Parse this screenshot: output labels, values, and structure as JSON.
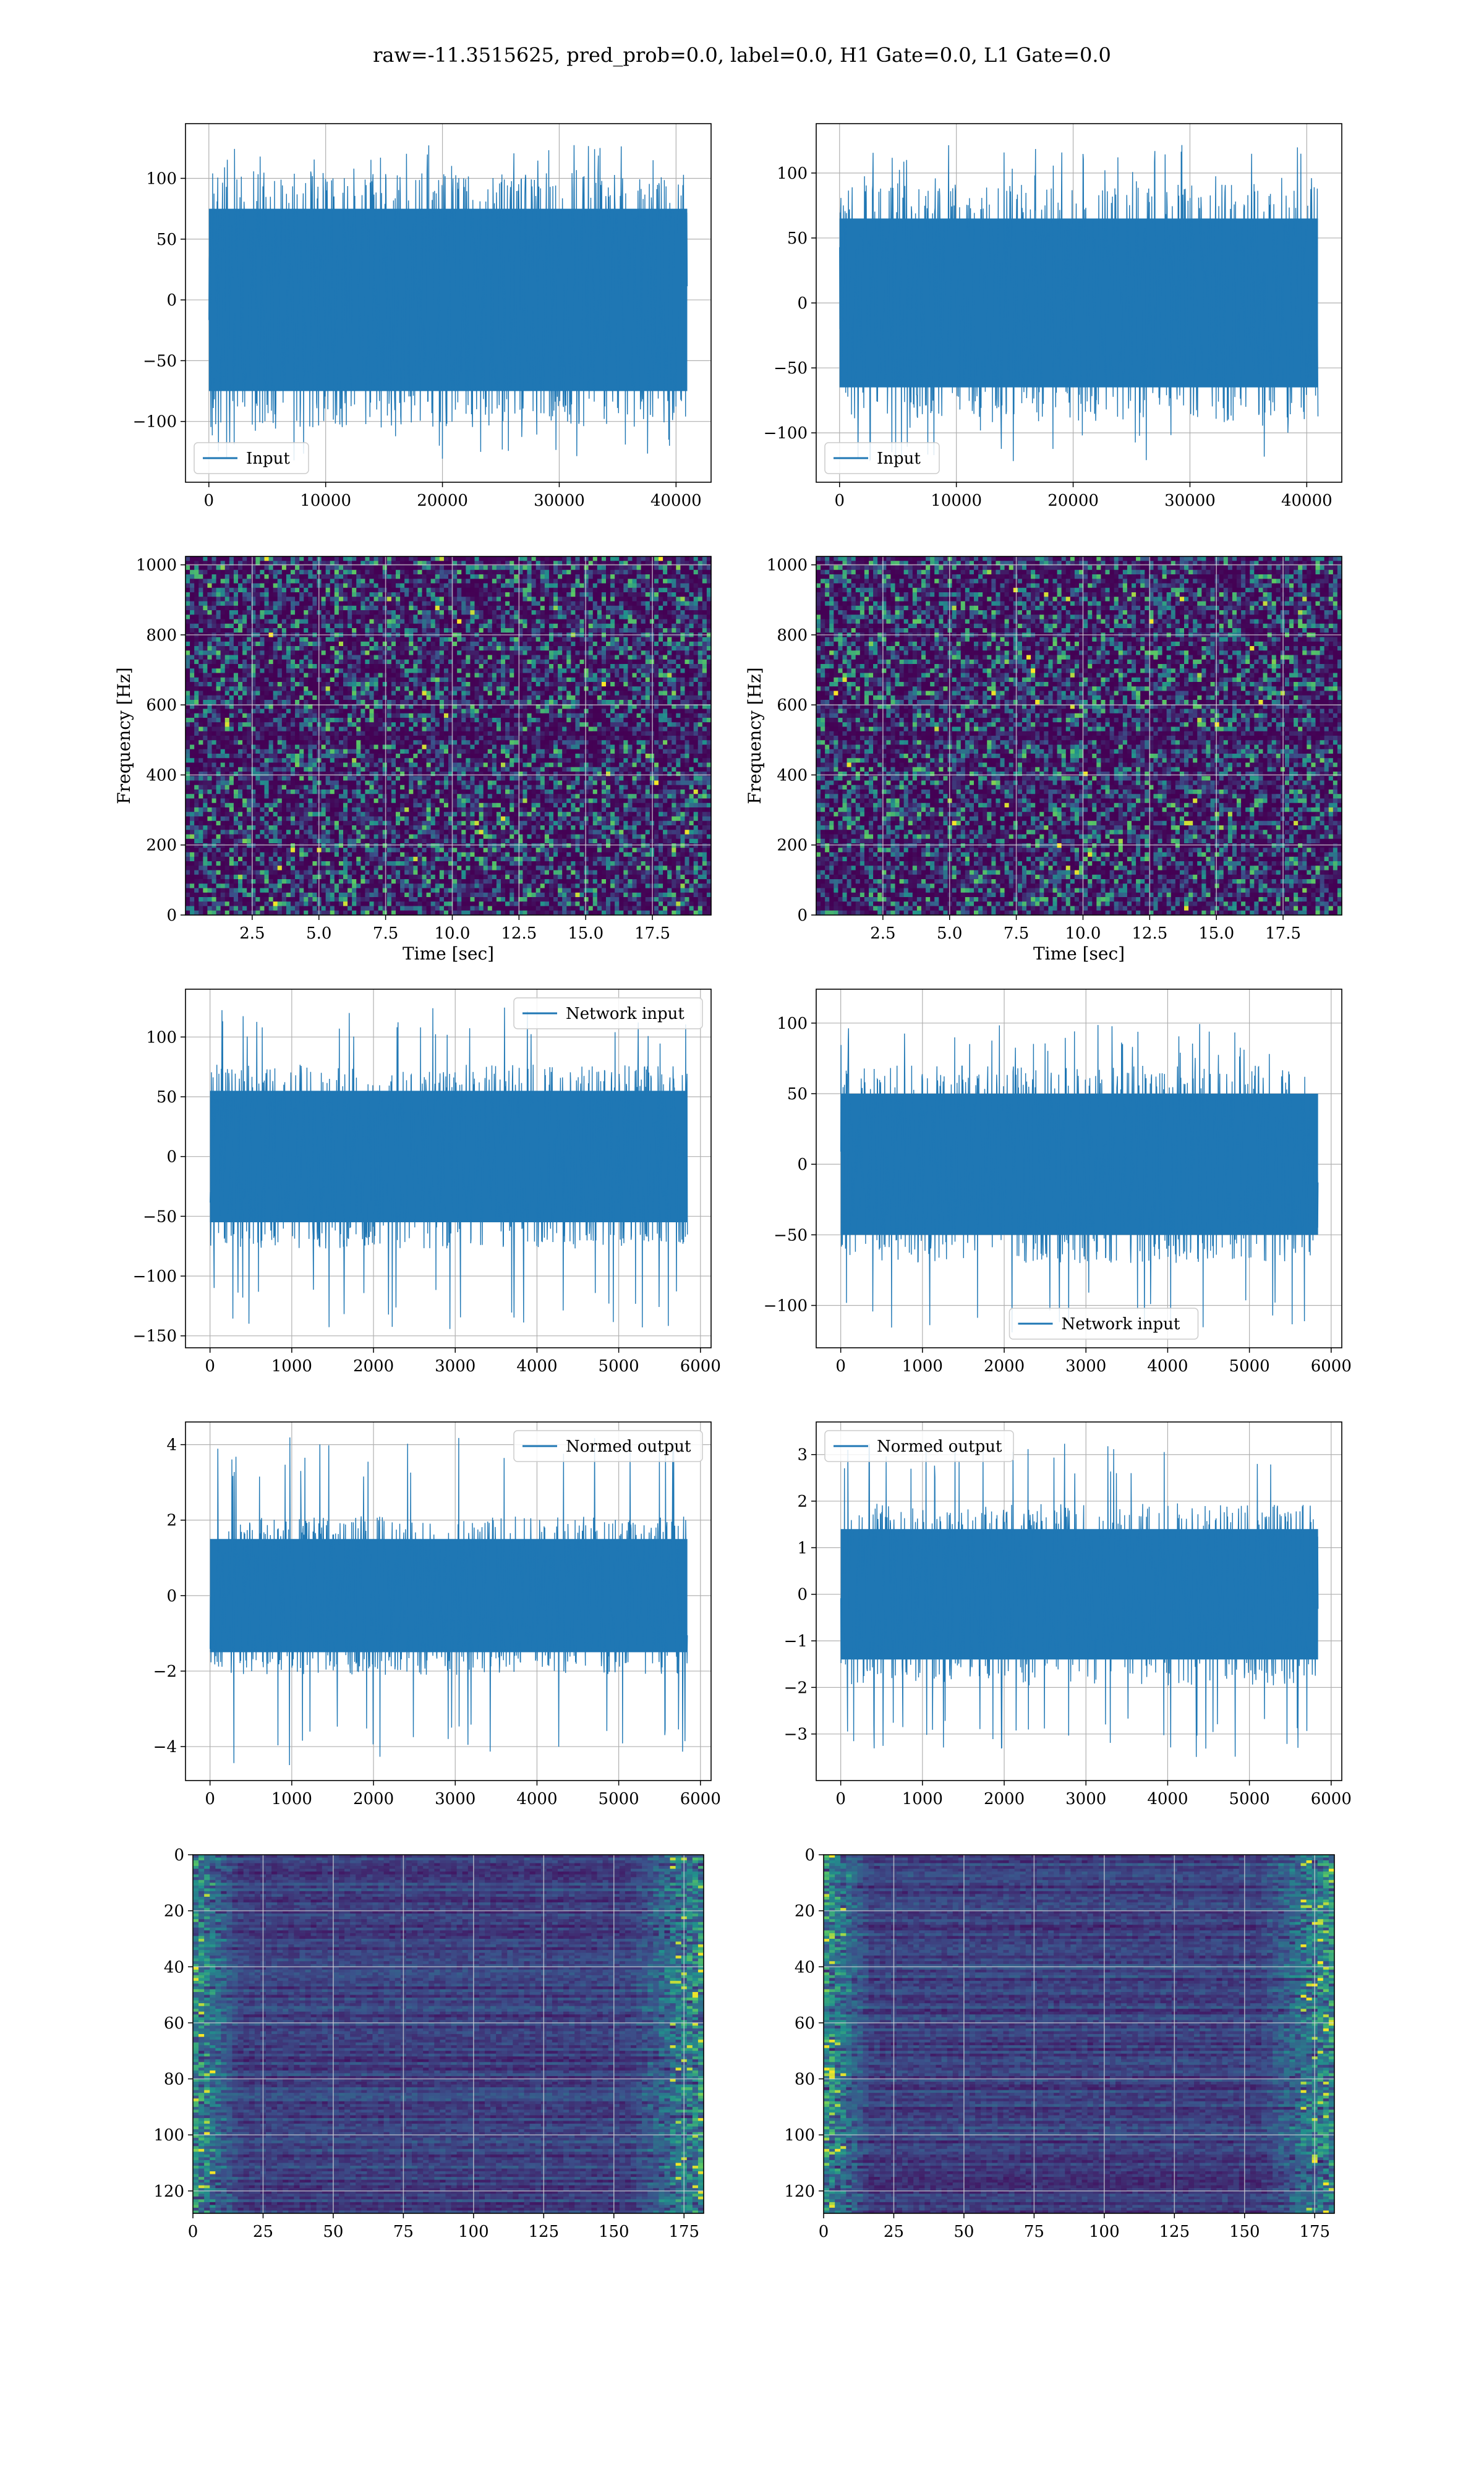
{
  "figure": {
    "suptitle": "raw=-11.3515625, pred_prob=0.0, label=0.0, H1 Gate=0.0, L1 Gate=0.0"
  },
  "colors": {
    "line": "#1f77b4",
    "grid": "#b0b0b0",
    "viridis_low": "#440154",
    "viridis_mid": "#21918c",
    "viridis_high": "#fde725"
  },
  "chart_data": [
    {
      "id": "input-h1",
      "type": "line",
      "series": [
        {
          "name": "Input"
        }
      ],
      "x_range": [
        0,
        40960
      ],
      "y_fill": [
        -75,
        75
      ],
      "y_spike": [
        -132,
        128
      ],
      "xticks": [
        0,
        10000,
        20000,
        30000,
        40000
      ],
      "yticks": [
        -100,
        -50,
        0,
        50,
        100
      ],
      "xlim": [
        -2000,
        43000
      ],
      "ylim": [
        -150,
        145
      ],
      "legend": "lower left",
      "grid": true
    },
    {
      "id": "input-l1",
      "type": "line",
      "series": [
        {
          "name": "Input"
        }
      ],
      "x_range": [
        0,
        40960
      ],
      "y_fill": [
        -65,
        65
      ],
      "y_spike": [
        -122,
        122
      ],
      "xticks": [
        0,
        10000,
        20000,
        30000,
        40000
      ],
      "yticks": [
        -100,
        -50,
        0,
        50,
        100
      ],
      "xlim": [
        -2000,
        43000
      ],
      "ylim": [
        -138,
        138
      ],
      "legend": "lower left",
      "grid": true
    },
    {
      "id": "spec-h1",
      "type": "heatmap",
      "xlabel": "Time [sec]",
      "ylabel": "Frequency [Hz]",
      "xticks": [
        2.5,
        5.0,
        7.5,
        10.0,
        12.5,
        15.0,
        17.5
      ],
      "yticks": [
        0,
        200,
        400,
        600,
        800,
        1000
      ],
      "xlim": [
        0,
        19.7
      ],
      "ylim": [
        0,
        1024
      ],
      "colormap": "viridis",
      "grid": true
    },
    {
      "id": "spec-l1",
      "type": "heatmap",
      "xlabel": "Time [sec]",
      "ylabel": "Frequency [Hz]",
      "xticks": [
        2.5,
        5.0,
        7.5,
        10.0,
        12.5,
        15.0,
        17.5
      ],
      "yticks": [
        0,
        200,
        400,
        600,
        800,
        1000
      ],
      "xlim": [
        0,
        19.7
      ],
      "ylim": [
        0,
        1024
      ],
      "colormap": "viridis",
      "grid": true
    },
    {
      "id": "net-h1",
      "type": "line",
      "series": [
        {
          "name": "Network input"
        }
      ],
      "x_range": [
        0,
        5840
      ],
      "y_fill": [
        -55,
        55
      ],
      "y_spike": [
        -145,
        125
      ],
      "xticks": [
        0,
        1000,
        2000,
        3000,
        4000,
        5000,
        6000
      ],
      "yticks": [
        -150,
        -100,
        -50,
        0,
        50,
        100
      ],
      "xlim": [
        -300,
        6130
      ],
      "ylim": [
        -160,
        140
      ],
      "legend": "upper right",
      "grid": true
    },
    {
      "id": "net-l1",
      "type": "line",
      "series": [
        {
          "name": "Network input"
        }
      ],
      "x_range": [
        0,
        5840
      ],
      "y_fill": [
        -50,
        50
      ],
      "y_spike": [
        -120,
        100
      ],
      "xticks": [
        0,
        1000,
        2000,
        3000,
        4000,
        5000,
        6000
      ],
      "yticks": [
        -100,
        -50,
        0,
        50,
        100
      ],
      "xlim": [
        -300,
        6130
      ],
      "ylim": [
        -130,
        124
      ],
      "legend": "lower center",
      "grid": true
    },
    {
      "id": "norm-h1",
      "type": "line",
      "series": [
        {
          "name": "Normed output"
        }
      ],
      "x_range": [
        0,
        5840
      ],
      "y_fill": [
        -1.5,
        1.5
      ],
      "y_spike": [
        -4.5,
        4.2
      ],
      "xticks": [
        0,
        1000,
        2000,
        3000,
        4000,
        5000,
        6000
      ],
      "yticks": [
        -4,
        -2,
        0,
        2,
        4
      ],
      "xlim": [
        -300,
        6130
      ],
      "ylim": [
        -4.9,
        4.6
      ],
      "legend": "upper right",
      "grid": true
    },
    {
      "id": "norm-l1",
      "type": "line",
      "series": [
        {
          "name": "Normed output"
        }
      ],
      "x_range": [
        0,
        5840
      ],
      "y_fill": [
        -1.4,
        1.4
      ],
      "y_spike": [
        -3.5,
        3.3
      ],
      "xticks": [
        0,
        1000,
        2000,
        3000,
        4000,
        5000,
        6000
      ],
      "yticks": [
        -3,
        -2,
        -1,
        0,
        1,
        2,
        3
      ],
      "xlim": [
        -300,
        6130
      ],
      "ylim": [
        -4.0,
        3.7
      ],
      "legend": "upper left",
      "grid": true
    },
    {
      "id": "feat-h1",
      "type": "heatmap",
      "xticks": [
        0,
        25,
        50,
        75,
        100,
        125,
        150,
        175
      ],
      "yticks": [
        0,
        20,
        40,
        60,
        80,
        100,
        120
      ],
      "xlim": [
        0,
        182
      ],
      "ylim": [
        128,
        0
      ],
      "colormap": "viridis",
      "grid": true
    },
    {
      "id": "feat-l1",
      "type": "heatmap",
      "xticks": [
        0,
        25,
        50,
        75,
        100,
        125,
        150,
        175
      ],
      "yticks": [
        0,
        20,
        40,
        60,
        80,
        100,
        120
      ],
      "xlim": [
        0,
        182
      ],
      "ylim": [
        128,
        0
      ],
      "colormap": "viridis",
      "grid": true
    }
  ]
}
